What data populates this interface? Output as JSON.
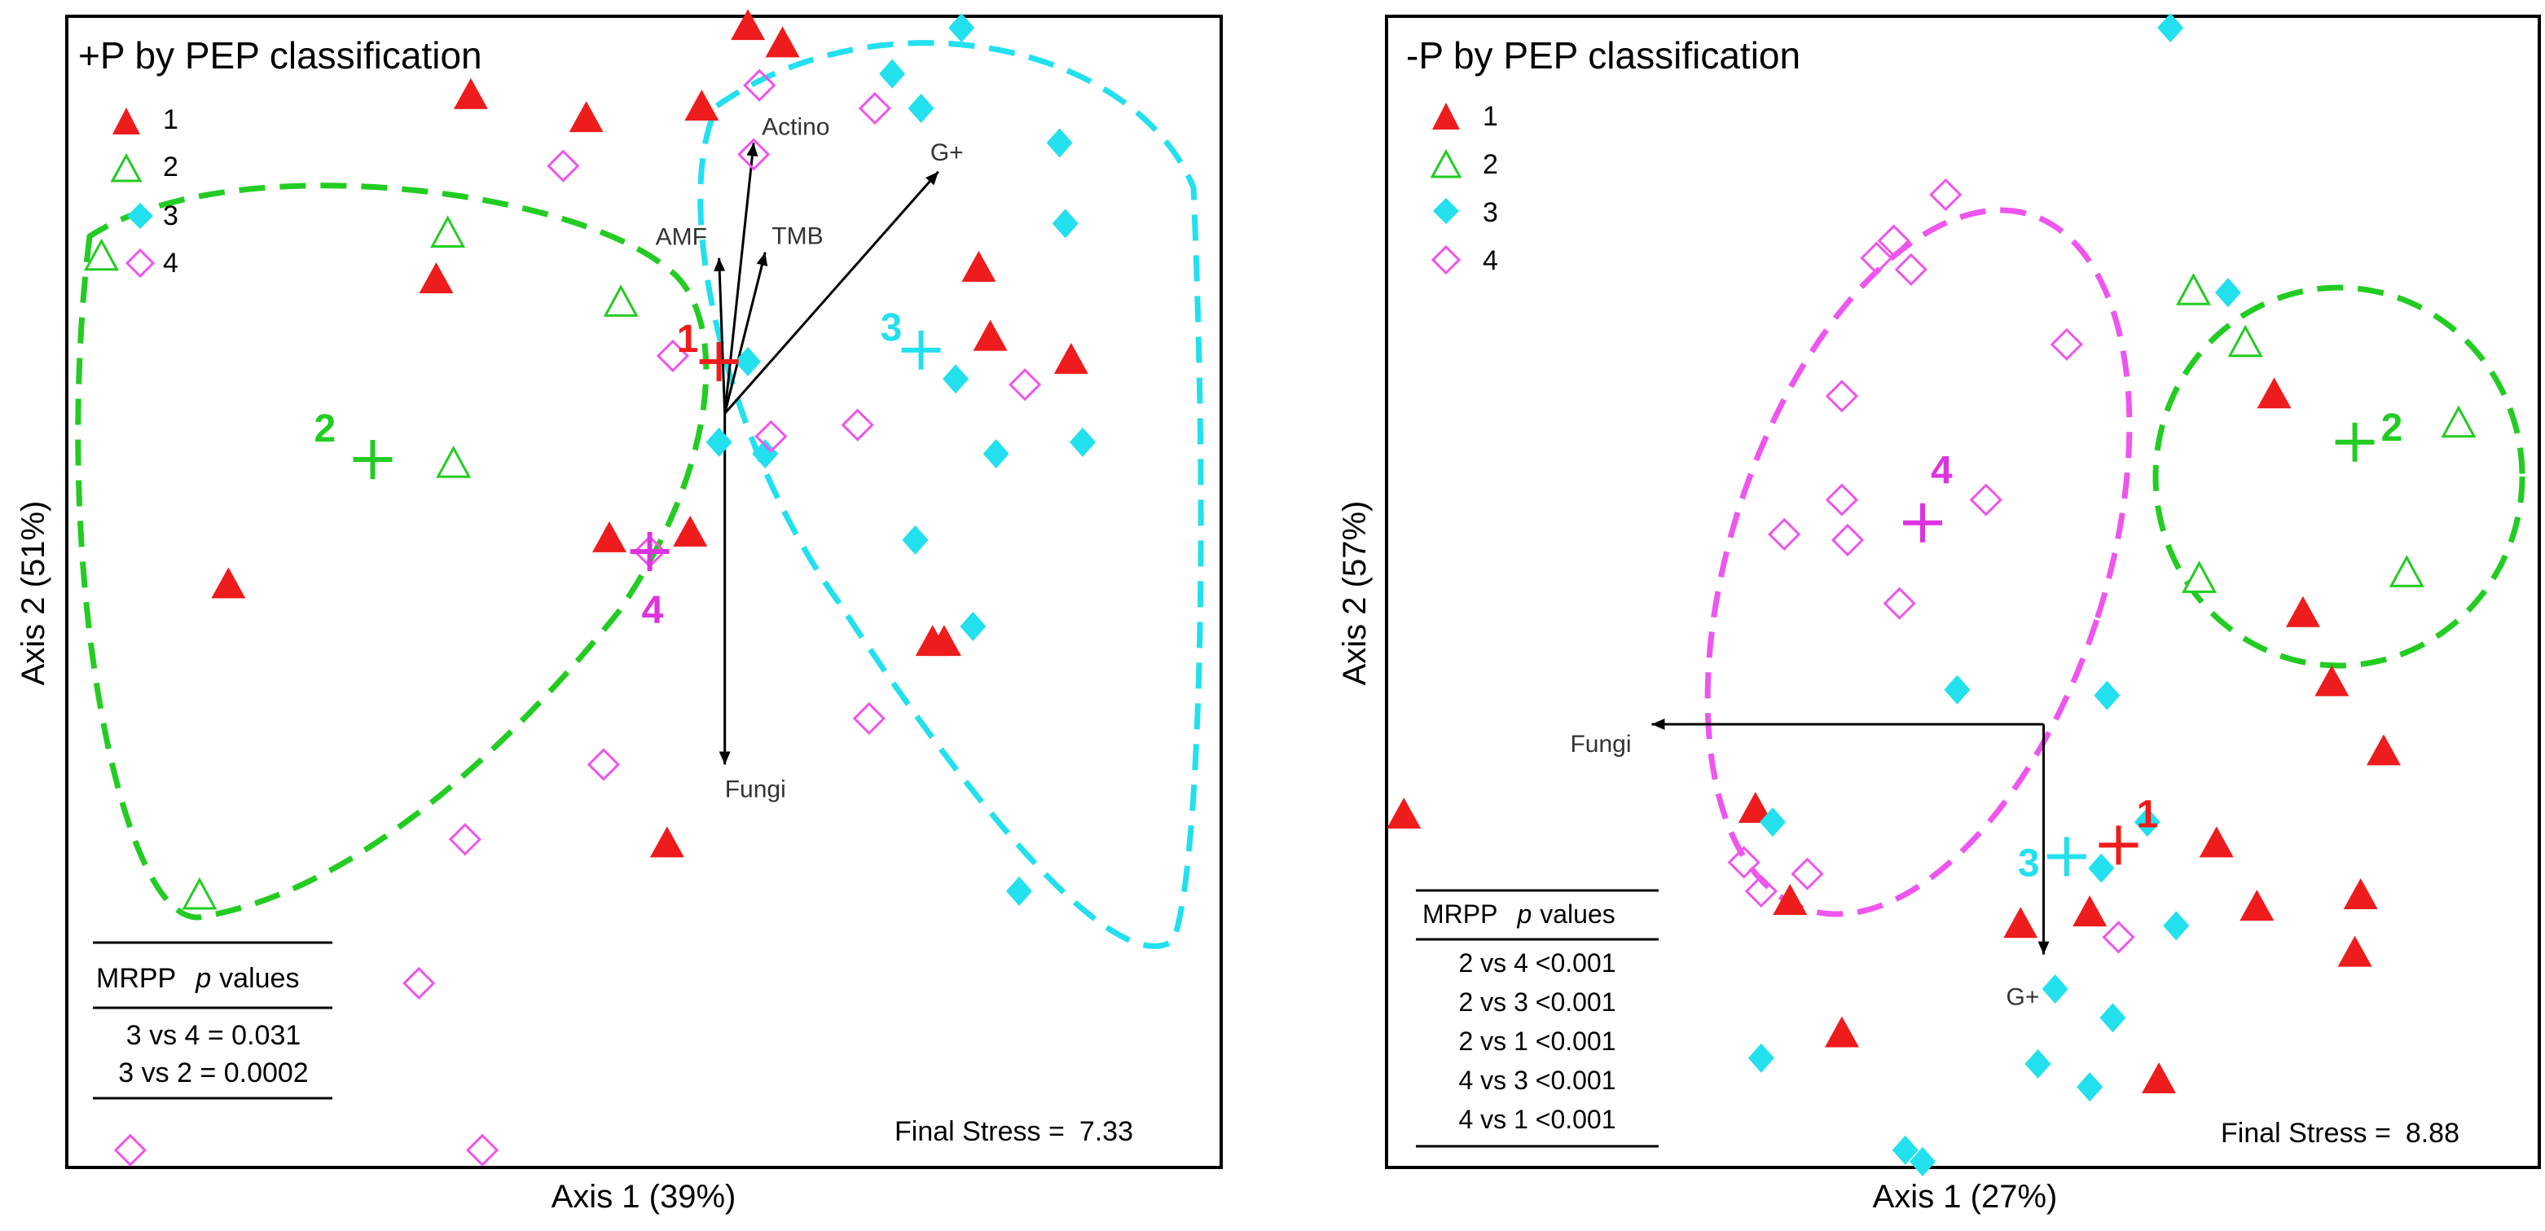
{
  "chart_data": [
    {
      "type": "scatter",
      "title": "+P by PEP classification",
      "xlabel": "Axis 1 (39%)",
      "ylabel": "Axis 2 (51%)",
      "xlim": [
        0,
        100
      ],
      "ylim": [
        0,
        100
      ],
      "grid": false,
      "legend_position": "top-left",
      "legend": [
        {
          "label": "1",
          "marker": "triangle-filled",
          "color": "#ee1c1c"
        },
        {
          "label": "2",
          "marker": "triangle-open",
          "color": "#22cc22"
        },
        {
          "label": "3",
          "marker": "diamond-filled",
          "color": "#22e0ee"
        },
        {
          "label": "4",
          "marker": "diamond-open",
          "color": "#ee55ee"
        }
      ],
      "series": [
        {
          "name": "1",
          "points": [
            [
              59.0,
              99.0
            ],
            [
              62.0,
              97.5
            ],
            [
              35.0,
              93.0
            ],
            [
              45.0,
              91.0
            ],
            [
              55.0,
              92.0
            ],
            [
              32.0,
              77.0
            ],
            [
              79.0,
              78.0
            ],
            [
              80.0,
              72.0
            ],
            [
              87.0,
              70.0
            ],
            [
              47.0,
              54.5
            ],
            [
              54.0,
              55.0
            ],
            [
              14.0,
              50.5
            ],
            [
              75.0,
              45.5
            ],
            [
              76.0,
              45.5
            ],
            [
              52.0,
              28.0
            ]
          ]
        },
        {
          "name": "2",
          "points": [
            [
              3.0,
              79.0
            ],
            [
              33.0,
              81.0
            ],
            [
              48.0,
              75.0
            ],
            [
              33.5,
              61.0
            ],
            [
              11.5,
              23.5
            ]
          ]
        },
        {
          "name": "3",
          "points": [
            [
              77.5,
              99.0
            ],
            [
              71.5,
              95.0
            ],
            [
              74.0,
              92.0
            ],
            [
              86.0,
              89.0
            ],
            [
              86.5,
              82.0
            ],
            [
              59.0,
              70.0
            ],
            [
              77.0,
              68.5
            ],
            [
              88.0,
              63.0
            ],
            [
              56.5,
              63.0
            ],
            [
              80.5,
              62.0
            ],
            [
              60.5,
              62.0
            ],
            [
              73.5,
              54.5
            ],
            [
              78.5,
              47.0
            ],
            [
              82.5,
              24.0
            ]
          ]
        },
        {
          "name": "4",
          "points": [
            [
              60.0,
              94.0
            ],
            [
              70.0,
              92.0
            ],
            [
              59.5,
              88.0
            ],
            [
              43.0,
              87.0
            ],
            [
              52.5,
              70.5
            ],
            [
              83.0,
              68.0
            ],
            [
              68.5,
              64.5
            ],
            [
              61.0,
              63.5
            ],
            [
              50.5,
              53.5
            ],
            [
              69.5,
              39.0
            ],
            [
              46.5,
              35.0
            ],
            [
              34.5,
              28.5
            ],
            [
              30.5,
              16.0
            ],
            [
              5.5,
              1.5
            ],
            [
              36.0,
              1.5
            ]
          ]
        }
      ],
      "centroids": [
        {
          "group": "1",
          "label": "1",
          "x": 56.5,
          "y": 70.0
        },
        {
          "group": "2",
          "label": "2",
          "x": 26.5,
          "y": 61.5
        },
        {
          "group": "3",
          "label": "3",
          "x": 74.0,
          "y": 71.0
        },
        {
          "group": "4",
          "label": "4",
          "x": 50.5,
          "y": 53.5
        }
      ],
      "vectors": [
        {
          "label": "Actino",
          "x": 59.5,
          "y": 89.0
        },
        {
          "label": "AMF",
          "x": 56.5,
          "y": 79.0
        },
        {
          "label": "TMB",
          "x": 60.5,
          "y": 79.5
        },
        {
          "label": "G+",
          "x": 75.5,
          "y": 86.5
        },
        {
          "label": "Fungi",
          "x": 57.0,
          "y": 35.0
        }
      ],
      "vector_origin": {
        "x": 57.0,
        "y": 65.5
      },
      "mrpp": {
        "header": {
          "label": "MRPP",
          "stat": "p",
          "rest": "values"
        },
        "rows": [
          "3 vs 4 = 0.031",
          "3 vs 2 = 0.0002"
        ]
      },
      "final_stress": {
        "label": "Final Stress =",
        "value": "7.33"
      }
    },
    {
      "type": "scatter",
      "title": "-P by PEP classification",
      "xlabel": "Axis 1 (27%)",
      "ylabel": "Axis 2 (57%)",
      "xlim": [
        0,
        100
      ],
      "ylim": [
        0,
        100
      ],
      "grid": false,
      "legend_position": "top-left",
      "legend": [
        {
          "label": "1",
          "marker": "triangle-filled",
          "color": "#ee1c1c"
        },
        {
          "label": "2",
          "marker": "triangle-open",
          "color": "#22cc22"
        },
        {
          "label": "3",
          "marker": "diamond-filled",
          "color": "#22e0ee"
        },
        {
          "label": "4",
          "marker": "diamond-open",
          "color": "#ee55ee"
        }
      ],
      "series": [
        {
          "name": "1",
          "points": [
            [
              77.0,
              67.0
            ],
            [
              79.5,
              48.0
            ],
            [
              82.0,
              42.0
            ],
            [
              1.5,
              30.5
            ],
            [
              32.0,
              31.0
            ],
            [
              86.5,
              36.0
            ],
            [
              72.0,
              28.0
            ],
            [
              35.0,
              23.0
            ],
            [
              75.5,
              22.5
            ],
            [
              84.5,
              23.5
            ],
            [
              55.0,
              21.0
            ],
            [
              61.0,
              22.0
            ],
            [
              84.0,
              18.5
            ],
            [
              39.5,
              11.5
            ],
            [
              67.0,
              7.5
            ]
          ]
        },
        {
          "name": "2",
          "points": [
            [
              70.0,
              76.0
            ],
            [
              74.5,
              71.5
            ],
            [
              93.0,
              64.5
            ],
            [
              70.5,
              51.0
            ],
            [
              88.5,
              51.5
            ]
          ]
        },
        {
          "name": "3",
          "points": [
            [
              68.0,
              99.0
            ],
            [
              73.0,
              76.0
            ],
            [
              49.5,
              41.5
            ],
            [
              62.5,
              41.0
            ],
            [
              33.5,
              30.0
            ],
            [
              66.0,
              30.0
            ],
            [
              62.0,
              26.0
            ],
            [
              68.5,
              21.0
            ],
            [
              58.0,
              15.5
            ],
            [
              63.0,
              13.0
            ],
            [
              32.5,
              9.5
            ],
            [
              56.5,
              9.0
            ],
            [
              61.0,
              7.0
            ],
            [
              45.0,
              1.5
            ],
            [
              46.5,
              0.5
            ]
          ]
        },
        {
          "name": "4",
          "points": [
            [
              48.5,
              84.5
            ],
            [
              44.0,
              80.5
            ],
            [
              42.5,
              79.0
            ],
            [
              45.5,
              78.0
            ],
            [
              59.0,
              71.5
            ],
            [
              39.5,
              67.0
            ],
            [
              39.5,
              58.0
            ],
            [
              52.0,
              58.0
            ],
            [
              34.5,
              55.0
            ],
            [
              40.0,
              54.5
            ],
            [
              44.5,
              49.0
            ],
            [
              31.0,
              26.5
            ],
            [
              36.5,
              25.5
            ],
            [
              32.5,
              24.0
            ],
            [
              63.5,
              20.0
            ]
          ]
        }
      ],
      "centroids": [
        {
          "group": "1",
          "label": "1",
          "x": 63.5,
          "y": 28.0
        },
        {
          "group": "2",
          "label": "2",
          "x": 84.0,
          "y": 63.0
        },
        {
          "group": "3",
          "label": "3",
          "x": 59.0,
          "y": 27.0
        },
        {
          "group": "4",
          "label": "4",
          "x": 46.5,
          "y": 56.0
        }
      ],
      "vectors": [
        {
          "label": "Fungi",
          "x": 23.0,
          "y": 38.5
        },
        {
          "label": "G+",
          "x": 57.0,
          "y": 18.5
        }
      ],
      "vector_origin": {
        "x": 57.0,
        "y": 38.5
      },
      "mrpp": {
        "header": {
          "label": "MRPP",
          "stat": "p",
          "rest": "values"
        },
        "rows": [
          "2 vs 4 <0.001",
          "2 vs 3 <0.001",
          "2 vs 1 <0.001",
          "4 vs 3 <0.001",
          "4 vs 1 <0.001"
        ]
      },
      "final_stress": {
        "label": "Final Stress =",
        "value": "8.88"
      }
    }
  ],
  "colors": {
    "group1": "#ee1c1c",
    "group2": "#22cc22",
    "group3": "#22e0ee",
    "group4": "#ee55ee",
    "centroid4": "#dd33dd",
    "axis": "#000000",
    "vector": "#000000"
  }
}
